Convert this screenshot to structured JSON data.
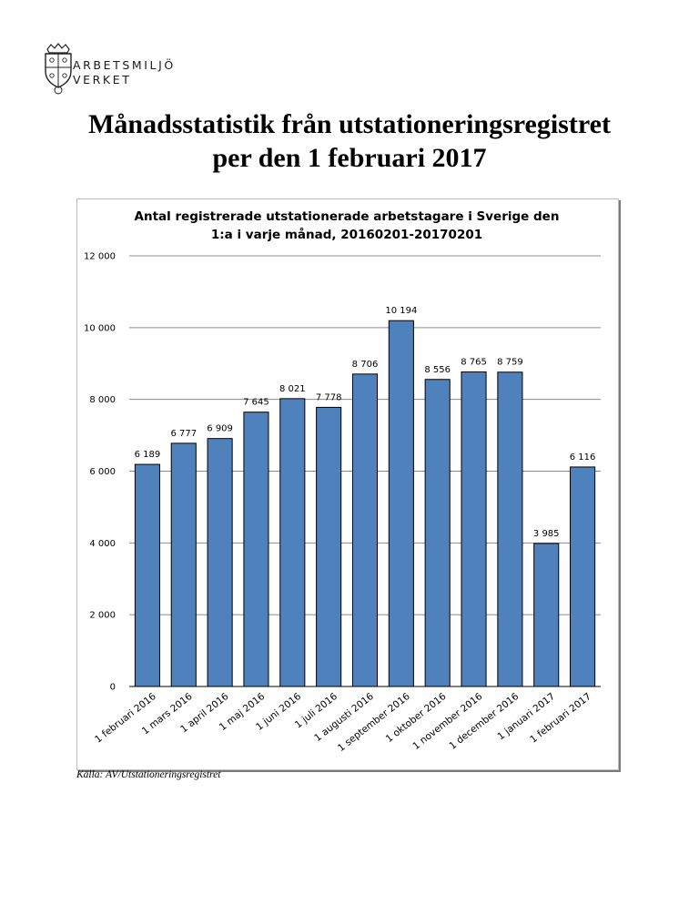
{
  "header": {
    "org_line1": "ARBETSMILJÖ",
    "org_line2": "VERKET",
    "logo_icon": "crown-shield-logo-icon"
  },
  "document": {
    "title_line1": "Månadsstatistik från utstationeringsregistret",
    "title_line2": "per den 1 februari 2017",
    "source": "Källa: AV/Utstationeringsregistret"
  },
  "chart_data": {
    "type": "bar",
    "title_line1": "Antal registrerade utstationerade arbetstagare i Sverige den",
    "title_line2": "1:a i varje månad, 20160201-20170201",
    "categories": [
      "1 februari 2016",
      "1 mars 2016",
      "1 april 2016",
      "1 maj 2016",
      "1 juni 2016",
      "1 juli 2016",
      "1 augusti 2016",
      "1 september 2016",
      "1 oktober 2016",
      "1 november 2016",
      "1 december 2016",
      "1 januari 2017",
      "1 februari 2017"
    ],
    "values": [
      6189,
      6777,
      6909,
      7645,
      8021,
      7778,
      8706,
      10194,
      8556,
      8765,
      8759,
      3985,
      6116
    ],
    "value_labels": [
      "6 189",
      "6 777",
      "6 909",
      "7 645",
      "8 021",
      "7 778",
      "8 706",
      "10 194",
      "8 556",
      "8 765",
      "8 759",
      "3 985",
      "6 116"
    ],
    "y_ticks": [
      0,
      2000,
      4000,
      6000,
      8000,
      10000,
      12000
    ],
    "y_tick_labels": [
      "0",
      "2 000",
      "4 000",
      "6 000",
      "8 000",
      "10 000",
      "12 000"
    ],
    "ylim": [
      0,
      12000
    ],
    "grid": true,
    "bar_color": "#4f81bd",
    "xlabel": "",
    "ylabel": ""
  }
}
